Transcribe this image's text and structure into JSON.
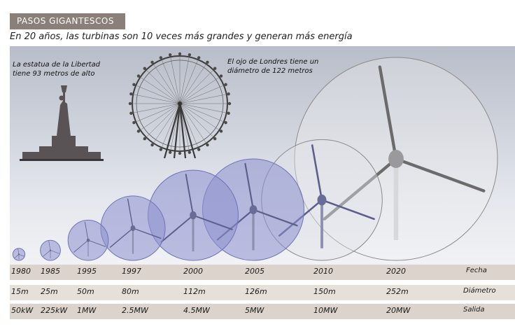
{
  "header": {
    "badge": "PASOS GIGANTESCOS",
    "subtitle": "En 20 años, las turbinas son 10 veces más grandes y generan más energía"
  },
  "notes": {
    "statue": [
      "La estatua de la Libertad",
      "tiene 93 metros de alto"
    ],
    "london_eye": [
      "El ojo de Londres tiene un",
      "diámetro de 122 metros"
    ]
  },
  "table": {
    "row_labels": {
      "year": "Fecha",
      "diameter": "Diámetro",
      "output": "Salida"
    },
    "turbines": [
      {
        "year": "1980",
        "diameter": "15m",
        "output": "50kW",
        "diameter_m": 15
      },
      {
        "year": "1985",
        "diameter": "25m",
        "output": "225kW",
        "diameter_m": 25
      },
      {
        "year": "1995",
        "diameter": "50m",
        "output": "1MW",
        "diameter_m": 50
      },
      {
        "year": "1997",
        "diameter": "80m",
        "output": "2.5MW",
        "diameter_m": 80
      },
      {
        "year": "2000",
        "diameter": "112m",
        "output": "4.5MW",
        "diameter_m": 112
      },
      {
        "year": "2005",
        "diameter": "126m",
        "output": "5MW",
        "diameter_m": 126
      },
      {
        "year": "2010",
        "diameter": "150m",
        "output": "10MW",
        "diameter_m": 150
      },
      {
        "year": "2020",
        "diameter": "252m",
        "output": "20MW",
        "diameter_m": 252
      }
    ]
  },
  "colors": {
    "badge_bg": "#8b7f7a",
    "rotor_fill": "#8f92cf",
    "statue": "#5a5356",
    "row_bg": "#dcd4cc"
  }
}
